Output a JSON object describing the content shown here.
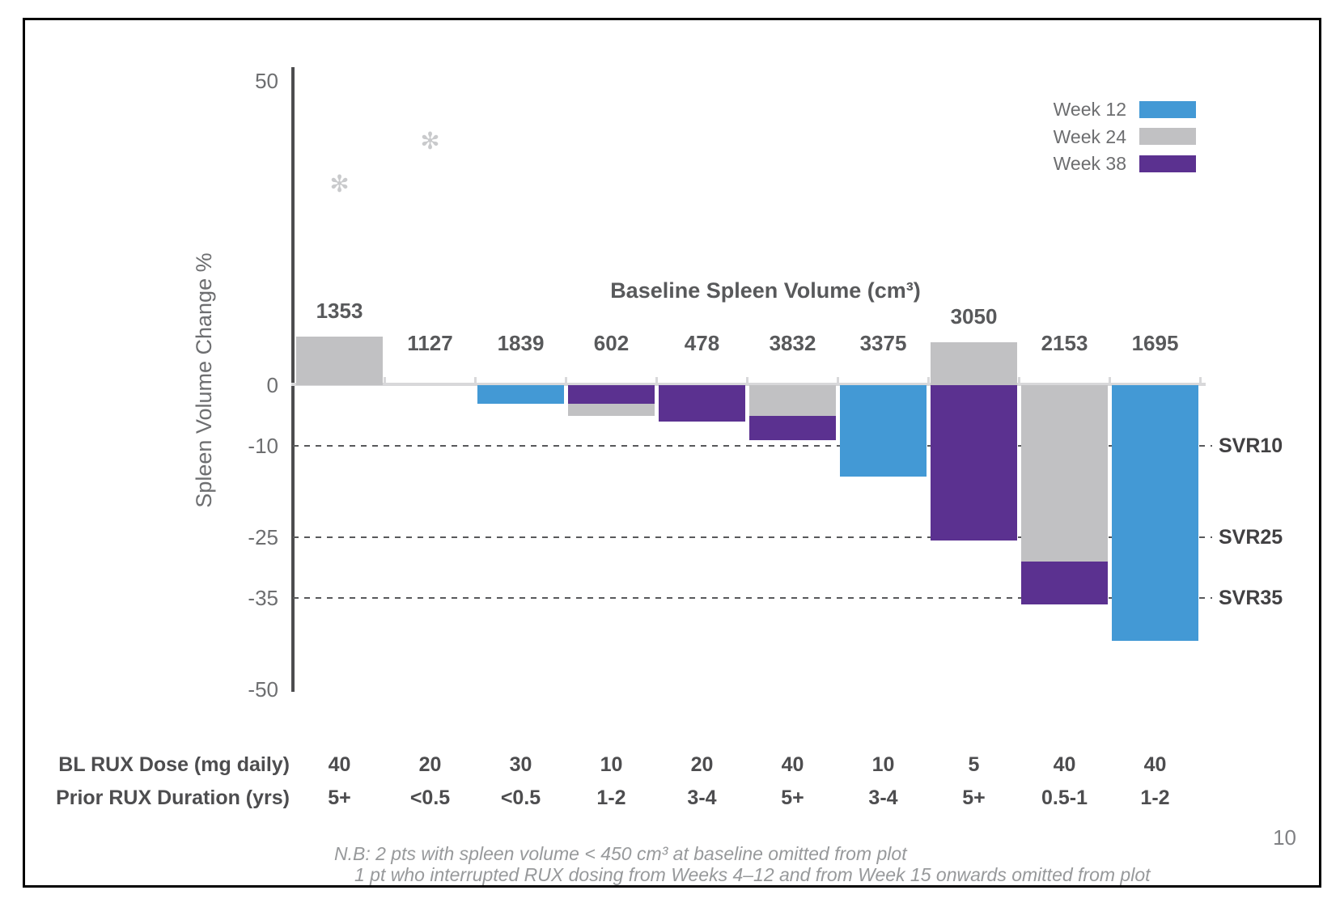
{
  "page_number": "10",
  "chart_data": {
    "type": "bar",
    "title": "Baseline Spleen Volume (cm³)",
    "ylabel": "Spleen Volume Change %",
    "ylim": [
      -50,
      50
    ],
    "yticks": [
      50,
      0,
      -10,
      -25,
      -35,
      -50
    ],
    "grid": "dashed reference lines at -10, -25, -35",
    "legend_position": "top-right",
    "legend": [
      {
        "label": "Week 12",
        "color": "#4399d5"
      },
      {
        "label": "Week 24",
        "color": "#c1c1c3"
      },
      {
        "label": "Week 38",
        "color": "#5b3190"
      }
    ],
    "reference_lines": [
      {
        "label": "SVR10",
        "value": -10
      },
      {
        "label": "SVR25",
        "value": -25
      },
      {
        "label": "SVR35",
        "value": -35
      }
    ],
    "categories": [
      "1353",
      "1127",
      "1839",
      "602",
      "478",
      "3832",
      "3375",
      "3050",
      "2153",
      "1695"
    ],
    "patients": [
      {
        "baseline_volume": "1353",
        "values": {
          "Week 24": 8
        },
        "marker": {
          "glyph": "✻",
          "value": 33
        },
        "dose": "40",
        "duration": "5+"
      },
      {
        "baseline_volume": "1127",
        "values": {},
        "marker": {
          "glyph": "✻",
          "value": 40
        },
        "dose": "20",
        "duration": "<0.5"
      },
      {
        "baseline_volume": "1839",
        "values": {
          "Week 12": -3
        },
        "dose": "30",
        "duration": "<0.5"
      },
      {
        "baseline_volume": "602",
        "values": {
          "Week 38": -3,
          "Week 24": -5
        },
        "dose": "10",
        "duration": "1-2"
      },
      {
        "baseline_volume": "478",
        "values": {
          "Week 38": -6
        },
        "dose": "20",
        "duration": "3-4"
      },
      {
        "baseline_volume": "3832",
        "values": {
          "Week 24": -5,
          "Week 38": -9
        },
        "dose": "40",
        "duration": "5+"
      },
      {
        "baseline_volume": "3375",
        "values": {
          "Week 12": -15
        },
        "dose": "10",
        "duration": "3-4"
      },
      {
        "baseline_volume": "3050",
        "values": {
          "Week 24": 7,
          "Week 38": -25.5
        },
        "dose": "5",
        "duration": "5+"
      },
      {
        "baseline_volume": "2153",
        "values": {
          "Week 24": -29,
          "Week 38": -36
        },
        "dose": "40",
        "duration": "0.5-1"
      },
      {
        "baseline_volume": "1695",
        "values": {
          "Week 12": -42
        },
        "dose": "40",
        "duration": "1-2"
      }
    ],
    "table": {
      "row1_label": "BL RUX Dose (mg daily)",
      "row2_label": "Prior RUX Duration (yrs)"
    },
    "footnote_line1": "N.B:  2 pts with spleen volume < 450 cm³ at baseline omitted from plot",
    "footnote_line2": "1 pt who interrupted RUX dosing from Weeks 4–12 and from Week 15 onwards omitted from plot"
  }
}
